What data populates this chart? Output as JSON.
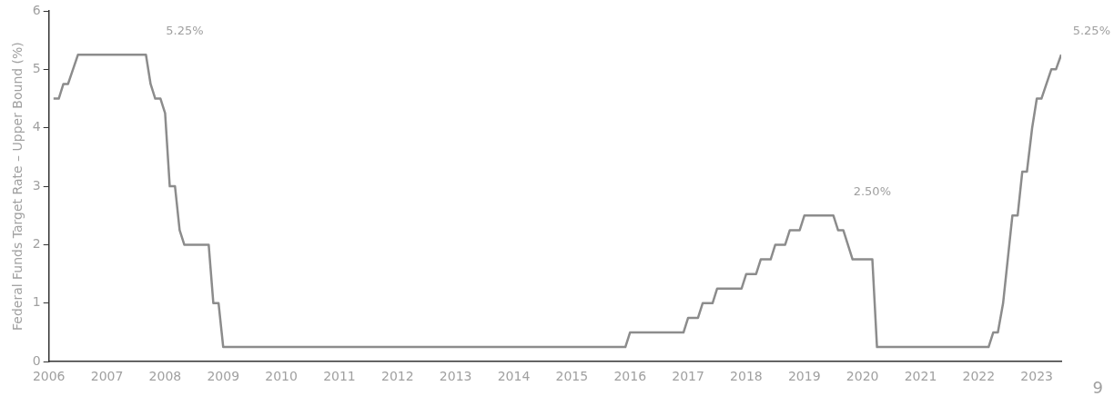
{
  "chart_data": {
    "type": "line",
    "ylabel": "Federal Funds Target Rate – Upper Bound (%)",
    "x": [
      2006.08,
      2006.17,
      2006.25,
      2006.33,
      2006.5,
      2007.67,
      2007.75,
      2007.83,
      2007.92,
      2008.0,
      2008.08,
      2008.17,
      2008.25,
      2008.33,
      2008.75,
      2008.83,
      2008.92,
      2009.0,
      2015.92,
      2016.0,
      2016.92,
      2017.0,
      2017.17,
      2017.25,
      2017.42,
      2017.5,
      2017.92,
      2018.0,
      2018.17,
      2018.25,
      2018.42,
      2018.5,
      2018.67,
      2018.75,
      2018.92,
      2019.0,
      2019.5,
      2019.58,
      2019.67,
      2019.83,
      2020.17,
      2020.25,
      2022.17,
      2022.25,
      2022.33,
      2022.42,
      2022.58,
      2022.67,
      2022.75,
      2022.83,
      2022.92,
      2023.0,
      2023.08,
      2023.25,
      2023.33,
      2023.42
    ],
    "series": [
      {
        "color": "#8c8c8c",
        "values": [
          4.5,
          4.5,
          4.75,
          4.75,
          5.25,
          5.25,
          4.75,
          4.5,
          4.5,
          4.25,
          3.0,
          3.0,
          2.25,
          2.0,
          2.0,
          1.0,
          1.0,
          0.25,
          0.25,
          0.5,
          0.5,
          0.75,
          0.75,
          1.0,
          1.0,
          1.25,
          1.25,
          1.5,
          1.5,
          1.75,
          1.75,
          2.0,
          2.0,
          2.25,
          2.25,
          2.5,
          2.5,
          2.25,
          2.25,
          1.75,
          1.75,
          0.25,
          0.25,
          0.5,
          0.5,
          1.0,
          2.5,
          2.5,
          3.25,
          3.25,
          4.0,
          4.5,
          4.5,
          5.0,
          5.0,
          5.25
        ]
      }
    ],
    "xlim": [
      2006,
      2023.42
    ],
    "xticks": [
      2006,
      2007,
      2008,
      2009,
      2010,
      2011,
      2012,
      2013,
      2014,
      2015,
      2016,
      2017,
      2018,
      2019,
      2020,
      2021,
      2022,
      2023
    ],
    "ylim": [
      0,
      6
    ],
    "yticks": [
      0,
      1,
      2,
      3,
      4,
      5,
      6
    ],
    "annotations": [
      {
        "text": "5.25%",
        "x": 2007.67,
        "y": 5.25
      },
      {
        "text": "2.50%",
        "x": 2019.5,
        "y": 2.5
      },
      {
        "text": "5.25%",
        "x": 2023.42,
        "y": 5.25
      },
      "9"
    ],
    "grid": false,
    "legend": false,
    "marker": "none",
    "line_style": "solid"
  }
}
